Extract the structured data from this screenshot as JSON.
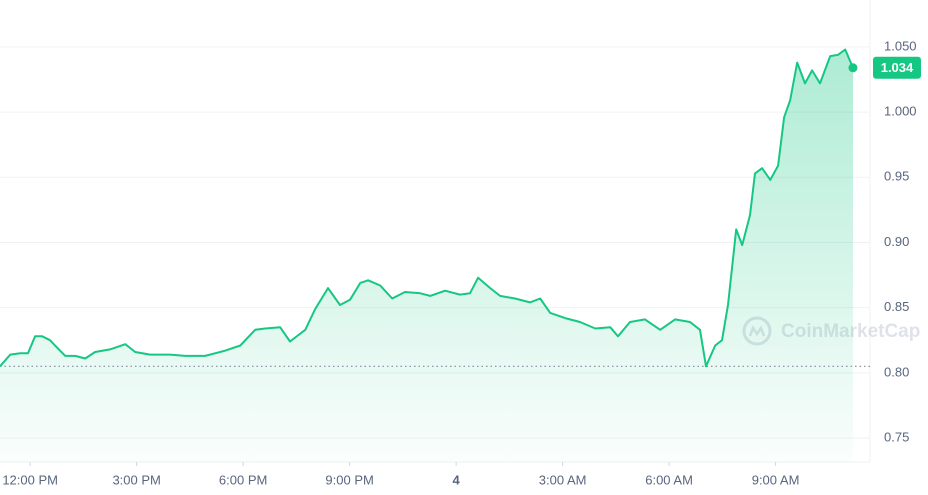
{
  "chart_data": {
    "type": "line",
    "watermark": "CoinMarketCap",
    "x": [
      -0.85,
      -0.56,
      -0.28,
      -0.06,
      0.14,
      0.34,
      0.56,
      0.7,
      0.99,
      1.27,
      1.55,
      1.83,
      2.25,
      2.68,
      2.96,
      3.38,
      3.94,
      4.37,
      4.93,
      5.49,
      5.92,
      6.34,
      6.62,
      7.04,
      7.32,
      7.75,
      8.03,
      8.39,
      8.73,
      9.01,
      9.3,
      9.52,
      9.86,
      10.2,
      10.56,
      10.99,
      11.27,
      11.69,
      12.11,
      12.39,
      12.62,
      12.96,
      13.24,
      13.66,
      14.08,
      14.37,
      14.65,
      15.07,
      15.49,
      15.92,
      16.34,
      16.56,
      16.9,
      17.32,
      17.75,
      18.17,
      18.59,
      18.87,
      19.04,
      19.3,
      19.49,
      19.66,
      19.89,
      20.06,
      20.28,
      20.42,
      20.62,
      20.85,
      21.07,
      21.24,
      21.41,
      21.61,
      21.83,
      22.03,
      22.25,
      22.54,
      22.76,
      22.96,
      23.18
    ],
    "series": [
      {
        "color": "#16c784",
        "values": [
          0.805,
          0.814,
          0.815,
          0.815,
          0.828,
          0.828,
          0.825,
          0.821,
          0.813,
          0.813,
          0.811,
          0.816,
          0.818,
          0.822,
          0.816,
          0.814,
          0.814,
          0.813,
          0.813,
          0.817,
          0.821,
          0.833,
          0.834,
          0.835,
          0.824,
          0.833,
          0.849,
          0.865,
          0.852,
          0.856,
          0.869,
          0.871,
          0.867,
          0.857,
          0.862,
          0.861,
          0.859,
          0.863,
          0.86,
          0.861,
          0.873,
          0.865,
          0.859,
          0.857,
          0.854,
          0.857,
          0.846,
          0.842,
          0.839,
          0.834,
          0.835,
          0.828,
          0.839,
          0.841,
          0.833,
          0.841,
          0.839,
          0.833,
          0.805,
          0.821,
          0.825,
          0.852,
          0.91,
          0.898,
          0.921,
          0.953,
          0.957,
          0.948,
          0.959,
          0.996,
          1.009,
          1.038,
          1.022,
          1.032,
          1.022,
          1.043,
          1.044,
          1.048,
          1.034
        ]
      }
    ],
    "xlim": [
      -0.85,
      23.66
    ],
    "xticks": [
      {
        "value": 0,
        "label": "12:00 PM"
      },
      {
        "value": 3,
        "label": "3:00 PM"
      },
      {
        "value": 6,
        "label": "6:00 PM"
      },
      {
        "value": 9,
        "label": "9:00 PM"
      },
      {
        "value": 12,
        "label": "4"
      },
      {
        "value": 15,
        "label": "3:00 AM"
      },
      {
        "value": 18,
        "label": "6:00 AM"
      },
      {
        "value": 21,
        "label": "9:00 AM"
      }
    ],
    "ylim": [
      0.7316,
      1.086
    ],
    "yticks": [
      0.75,
      {
        "value": 0.8,
        "label": "0.80"
      },
      0.85,
      {
        "value": 0.9,
        "label": "0.90"
      },
      0.95,
      {
        "value": 1.0,
        "label": "1.000"
      },
      {
        "value": 1.05,
        "label": "1.050"
      }
    ],
    "grid": true
  }
}
